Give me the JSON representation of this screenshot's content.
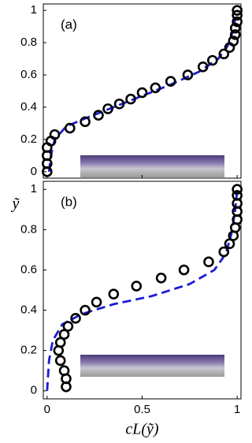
{
  "chart_data": [
    {
      "type": "scatter_line",
      "panel_label": "(a)",
      "ylabel": "ỹ",
      "xlim": [
        -0.02,
        1.02
      ],
      "ylim": [
        -0.04,
        1.04
      ],
      "xticks": [
        0,
        0.5,
        1
      ],
      "show_xtick_labels": false,
      "yticks": [
        0,
        0.2,
        0.4,
        0.6,
        0.8,
        1
      ],
      "markers": {
        "color": "#000000",
        "x": [
          0,
          0,
          0,
          0,
          0.02,
          0.04,
          0.12,
          0.2,
          0.27,
          0.32,
          0.38,
          0.44,
          0.5,
          0.57,
          0.65,
          0.74,
          0.82,
          0.87,
          0.93,
          0.96,
          0.98,
          0.99,
          0.99,
          1,
          1,
          1
        ],
        "y": [
          0,
          0.05,
          0.1,
          0.15,
          0.19,
          0.23,
          0.27,
          0.31,
          0.35,
          0.39,
          0.42,
          0.45,
          0.49,
          0.52,
          0.56,
          0.6,
          0.65,
          0.69,
          0.73,
          0.77,
          0.81,
          0.85,
          0.89,
          0.93,
          0.97,
          1
        ]
      },
      "curve": {
        "color": "#1a1ad6",
        "x": [
          0.01,
          0.02,
          0.04,
          0.1,
          0.2,
          0.35,
          0.5,
          0.65,
          0.8,
          0.9,
          0.95,
          0.98,
          0.99,
          1
        ],
        "y": [
          0,
          0.1,
          0.2,
          0.28,
          0.33,
          0.4,
          0.47,
          0.54,
          0.62,
          0.7,
          0.78,
          0.88,
          0.95,
          1
        ]
      }
    },
    {
      "type": "scatter_line",
      "panel_label": "(b)",
      "xlabel": "cL(ỹ)",
      "xlim": [
        -0.02,
        1.02
      ],
      "ylim": [
        -0.04,
        1.04
      ],
      "xticks": [
        0,
        0.5,
        1
      ],
      "show_xtick_labels": true,
      "yticks": [
        0,
        0.2,
        0.4,
        0.6,
        0.8,
        1
      ],
      "markers": {
        "color": "#000000",
        "x": [
          0.1,
          0.1,
          0.09,
          0.07,
          0.06,
          0.07,
          0.09,
          0.11,
          0.15,
          0.2,
          0.26,
          0.35,
          0.47,
          0.6,
          0.72,
          0.85,
          0.93,
          0.96,
          0.98,
          0.99,
          1,
          1,
          1,
          1,
          1
        ],
        "y": [
          0.02,
          0.06,
          0.1,
          0.15,
          0.2,
          0.24,
          0.28,
          0.32,
          0.36,
          0.4,
          0.44,
          0.48,
          0.52,
          0.56,
          0.6,
          0.64,
          0.69,
          0.73,
          0.77,
          0.81,
          0.85,
          0.89,
          0.93,
          0.97,
          1
        ]
      },
      "curve": {
        "color": "#1a1ad6",
        "x": [
          0,
          0.01,
          0.03,
          0.08,
          0.18,
          0.35,
          0.55,
          0.75,
          0.88,
          0.94,
          0.97,
          0.99,
          1
        ],
        "y": [
          0,
          0.15,
          0.25,
          0.33,
          0.38,
          0.43,
          0.47,
          0.53,
          0.6,
          0.68,
          0.78,
          0.9,
          1
        ]
      }
    }
  ]
}
